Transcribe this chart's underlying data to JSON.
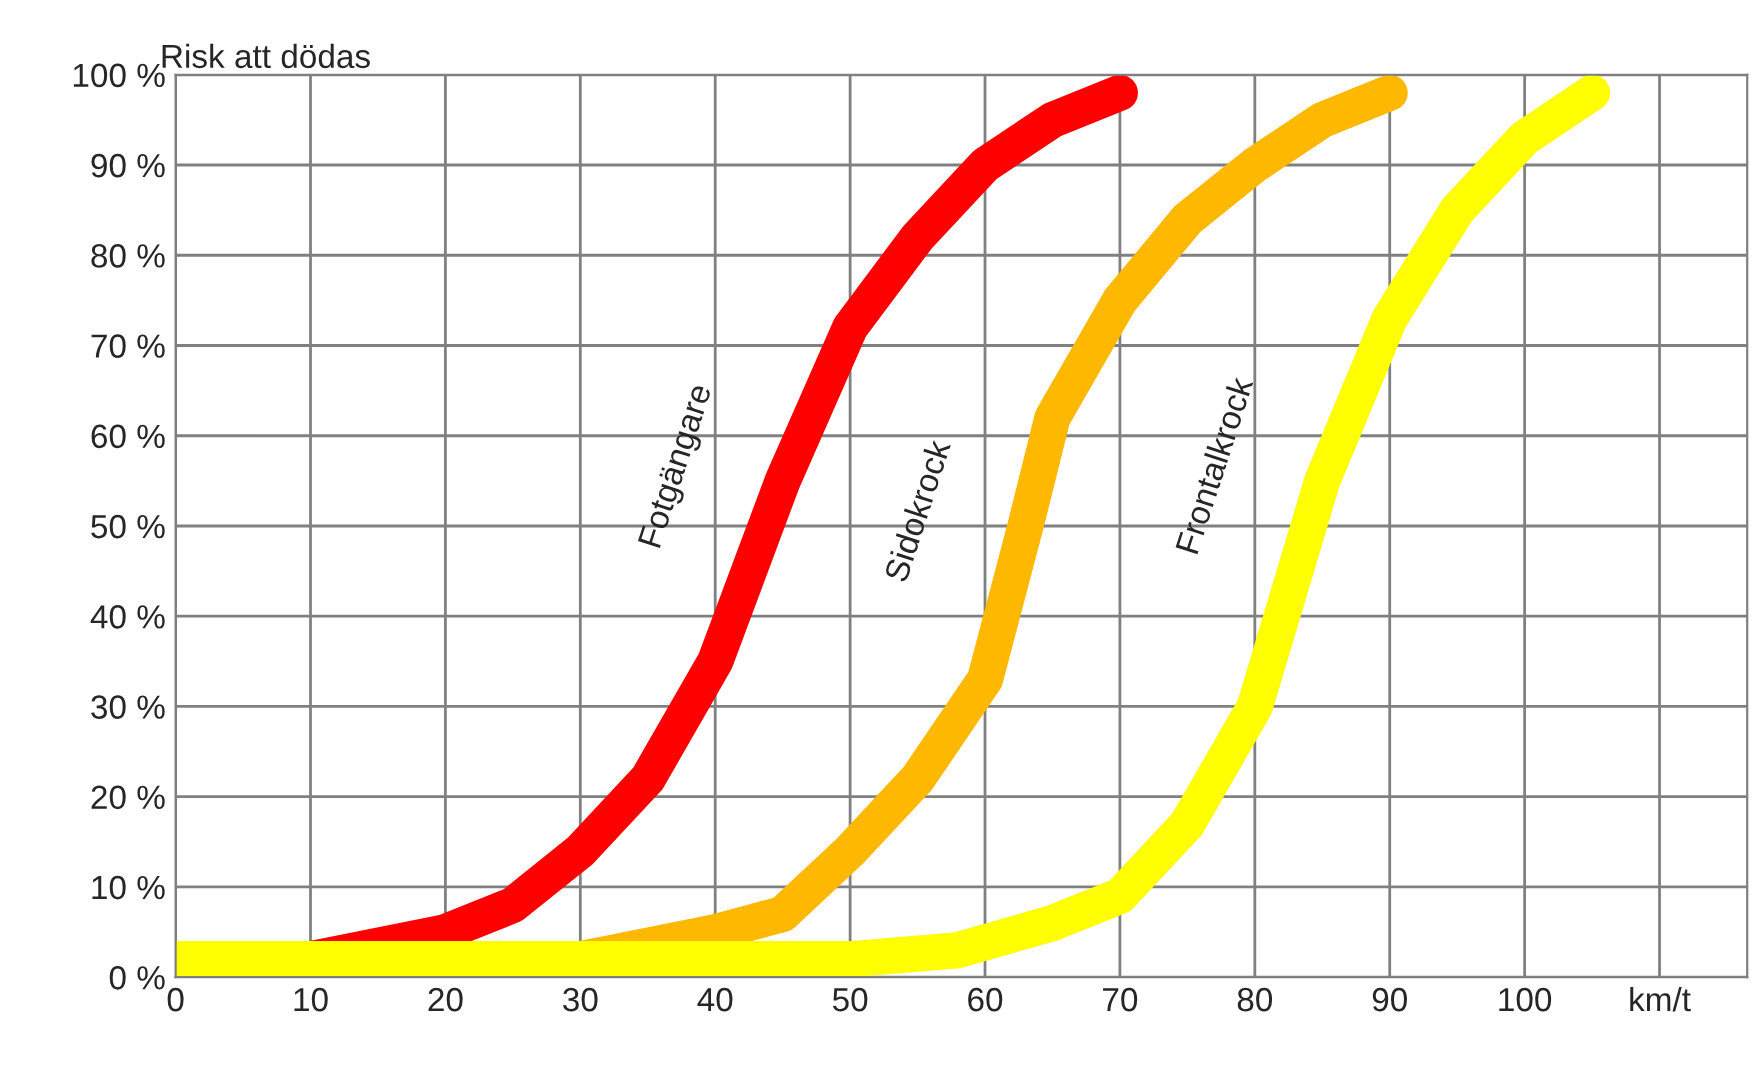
{
  "chart_data": {
    "type": "line",
    "ylabel": "Risk att dödas",
    "xlim": [
      0,
      116.5
    ],
    "xticks": [
      0,
      10,
      20,
      30,
      40,
      50,
      60,
      70,
      80,
      90,
      100,
      {
        "value": 110,
        "label": "km/t"
      }
    ],
    "ylim": [
      0,
      100
    ],
    "yticks": [
      {
        "value": 0,
        "label": "0 %"
      },
      {
        "value": 10,
        "label": "10 %"
      },
      {
        "value": 20,
        "label": "20 %"
      },
      {
        "value": 30,
        "label": "30 %"
      },
      {
        "value": 40,
        "label": "40 %"
      },
      {
        "value": 50,
        "label": "50 %"
      },
      {
        "value": 60,
        "label": "60 %"
      },
      {
        "value": 70,
        "label": "70 %"
      },
      {
        "value": 80,
        "label": "80 %"
      },
      {
        "value": 90,
        "label": "90 %"
      },
      {
        "value": 100,
        "label": "100 %"
      }
    ],
    "grid": true,
    "legend": false,
    "series": [
      {
        "name": "Fotgängare",
        "color": "#ff0000",
        "x": [
          10,
          20,
          25,
          30,
          35,
          40,
          45,
          50,
          55,
          60,
          65,
          70
        ],
        "values": [
          2,
          5,
          8,
          14,
          22,
          35,
          55,
          72,
          82,
          90,
          95,
          98
        ]
      },
      {
        "name": "Sidokrock",
        "color": "#ffb800",
        "x": [
          20,
          30,
          40,
          45,
          50,
          55,
          60,
          63,
          65,
          70,
          75,
          80,
          85,
          90
        ],
        "values": [
          2,
          2,
          5,
          7,
          14,
          22,
          33,
          50,
          62,
          75,
          84,
          90,
          95,
          98
        ]
      },
      {
        "name": "Frontalkrock",
        "color": "#ffff00",
        "x": [
          0,
          10,
          50,
          58,
          65,
          70,
          75,
          80,
          85,
          90,
          95,
          100,
          105
        ],
        "values": [
          2,
          2,
          2,
          3,
          6,
          9,
          17,
          30,
          55,
          73,
          85,
          93,
          98
        ]
      }
    ]
  }
}
